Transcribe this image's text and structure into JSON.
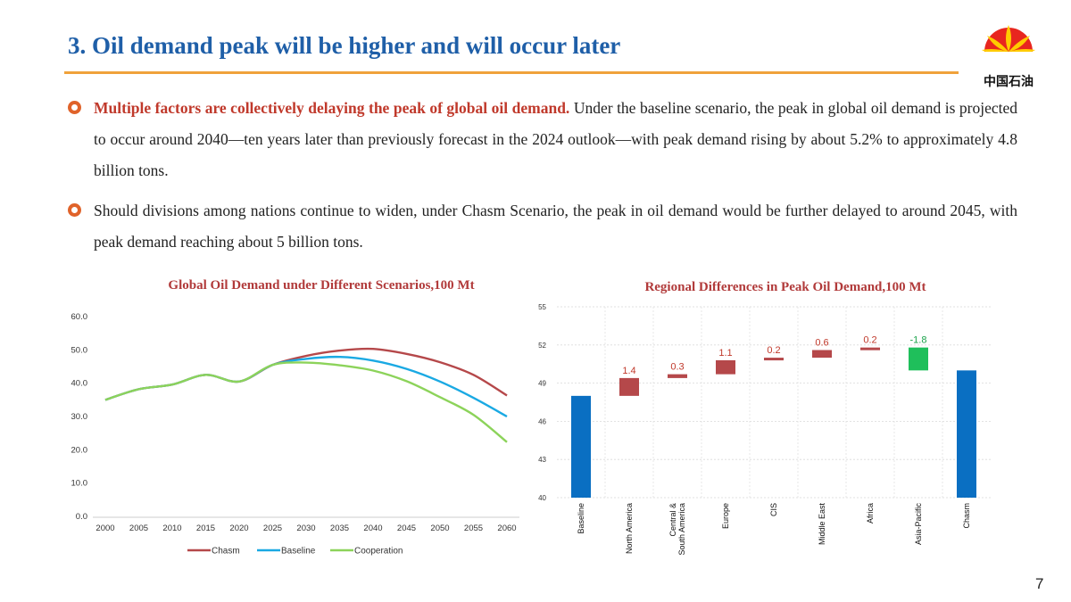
{
  "slide": {
    "title": "3. Oil demand peak will be higher and will occur later",
    "logo_text": "中国石油",
    "page_number": "7"
  },
  "bullets": [
    {
      "lead": "Multiple factors are collectively delaying the peak of global oil demand.",
      "text": " Under the baseline scenario, the peak in global oil demand is projected to occur around 2040—ten years later than previously forecast in the 2024 outlook—with peak demand rising by about 5.2% to approximately 4.8 billion tons."
    },
    {
      "lead": "",
      "text": "Should divisions among nations continue to widen, under Chasm Scenario, the peak in oil demand would be further delayed to around 2045, with peak demand reaching about 5 billion tons."
    }
  ],
  "colors": {
    "chasm": "#b5484a",
    "baseline": "#1aa9e3",
    "cooperation": "#8cd35a",
    "waterfall_total": "#0a6fc2",
    "waterfall_up": "#b5484a",
    "waterfall_down": "#1fbf5b"
  },
  "chart_data": [
    {
      "type": "line",
      "title": "Global Oil Demand under Different Scenarios,100 Mt",
      "x": [
        2000,
        2005,
        2010,
        2015,
        2020,
        2025,
        2030,
        2035,
        2040,
        2045,
        2050,
        2055,
        2060
      ],
      "x_labels": [
        "2000",
        "2005",
        "2010",
        "2015",
        "2020",
        "2025",
        "2030",
        "2035",
        "2040",
        "2045",
        "2050",
        "2055",
        "2060"
      ],
      "y_ticks": [
        "0.0",
        "10.0",
        "20.0",
        "30.0",
        "40.0",
        "50.0",
        "60.0"
      ],
      "ylim": [
        0,
        60
      ],
      "grid": false,
      "legend_position": "bottom",
      "series": [
        {
          "name": "Chasm",
          "color_key": "chasm",
          "values": [
            35.0,
            38.2,
            39.6,
            42.5,
            40.5,
            45.5,
            48.2,
            49.8,
            50.3,
            48.8,
            46.3,
            42.5,
            36.3
          ]
        },
        {
          "name": "Baseline",
          "color_key": "baseline",
          "values": [
            35.0,
            38.2,
            39.6,
            42.5,
            40.5,
            45.5,
            47.3,
            47.9,
            46.8,
            44.3,
            40.5,
            35.6,
            30.0
          ]
        },
        {
          "name": "Cooperation",
          "color_key": "cooperation",
          "values": [
            35.0,
            38.2,
            39.6,
            42.5,
            40.5,
            45.5,
            46.2,
            45.4,
            43.8,
            40.6,
            35.8,
            30.5,
            22.3
          ]
        }
      ]
    },
    {
      "type": "bar",
      "subtype": "waterfall",
      "title": "Regional Differences in Peak Oil Demand,100 Mt",
      "ylim": [
        40,
        55
      ],
      "y_ticks": [
        "40",
        "43",
        "46",
        "49",
        "52",
        "55"
      ],
      "grid": true,
      "categories": [
        "Baseline",
        "North America",
        "Central & South America",
        "Europe",
        "CIS",
        "Middle East",
        "Africa",
        "Asia-Pacific",
        "Chasm"
      ],
      "items": [
        {
          "label": "Baseline",
          "kind": "total",
          "value": 48.0,
          "data_label": ""
        },
        {
          "label": "North America",
          "kind": "delta",
          "value": 1.4,
          "data_label": "1.4"
        },
        {
          "label": "Central & South America",
          "kind": "delta",
          "value": 0.3,
          "data_label": "0.3"
        },
        {
          "label": "Europe",
          "kind": "delta",
          "value": 1.1,
          "data_label": "1.1"
        },
        {
          "label": "CIS",
          "kind": "delta",
          "value": 0.2,
          "data_label": "0.2"
        },
        {
          "label": "Middle East",
          "kind": "delta",
          "value": 0.6,
          "data_label": "0.6"
        },
        {
          "label": "Africa",
          "kind": "delta",
          "value": 0.2,
          "data_label": "0.2"
        },
        {
          "label": "Asia-Pacific",
          "kind": "delta",
          "value": -1.8,
          "data_label": "-1.8"
        },
        {
          "label": "Chasm",
          "kind": "total",
          "value": 50.0,
          "data_label": ""
        }
      ]
    }
  ]
}
